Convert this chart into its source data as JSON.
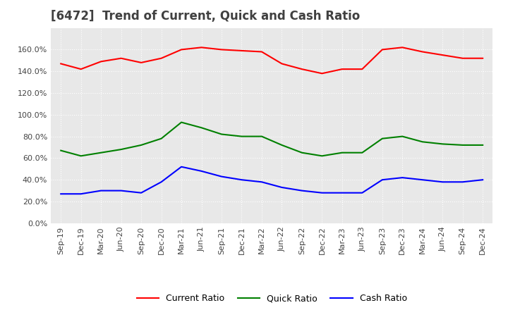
{
  "title": "[6472]  Trend of Current, Quick and Cash Ratio",
  "x_labels": [
    "Sep-19",
    "Dec-19",
    "Mar-20",
    "Jun-20",
    "Sep-20",
    "Dec-20",
    "Mar-21",
    "Jun-21",
    "Sep-21",
    "Dec-21",
    "Mar-22",
    "Jun-22",
    "Sep-22",
    "Dec-22",
    "Mar-23",
    "Jun-23",
    "Sep-23",
    "Dec-23",
    "Mar-24",
    "Jun-24",
    "Sep-24",
    "Dec-24"
  ],
  "current_ratio": [
    1.47,
    1.42,
    1.49,
    1.52,
    1.48,
    1.52,
    1.6,
    1.62,
    1.6,
    1.59,
    1.58,
    1.47,
    1.42,
    1.38,
    1.42,
    1.42,
    1.6,
    1.62,
    1.58,
    1.55,
    1.52,
    1.52
  ],
  "quick_ratio": [
    0.67,
    0.62,
    0.65,
    0.68,
    0.72,
    0.78,
    0.93,
    0.88,
    0.82,
    0.8,
    0.8,
    0.72,
    0.65,
    0.62,
    0.65,
    0.65,
    0.78,
    0.8,
    0.75,
    0.73,
    0.72,
    0.72
  ],
  "cash_ratio": [
    0.27,
    0.27,
    0.3,
    0.3,
    0.28,
    0.38,
    0.52,
    0.48,
    0.43,
    0.4,
    0.38,
    0.33,
    0.3,
    0.28,
    0.28,
    0.28,
    0.4,
    0.42,
    0.4,
    0.38,
    0.38,
    0.4
  ],
  "current_color": "#FF0000",
  "quick_color": "#008000",
  "cash_color": "#0000FF",
  "ylim": [
    0.0,
    1.8
  ],
  "yticks": [
    0.0,
    0.2,
    0.4,
    0.6,
    0.8,
    1.0,
    1.2,
    1.4,
    1.6
  ],
  "background_color": "#FFFFFF",
  "plot_bg_color": "#E8E8E8",
  "grid_color": "#FFFFFF",
  "title_fontsize": 12,
  "axis_fontsize": 8,
  "legend_fontsize": 9
}
